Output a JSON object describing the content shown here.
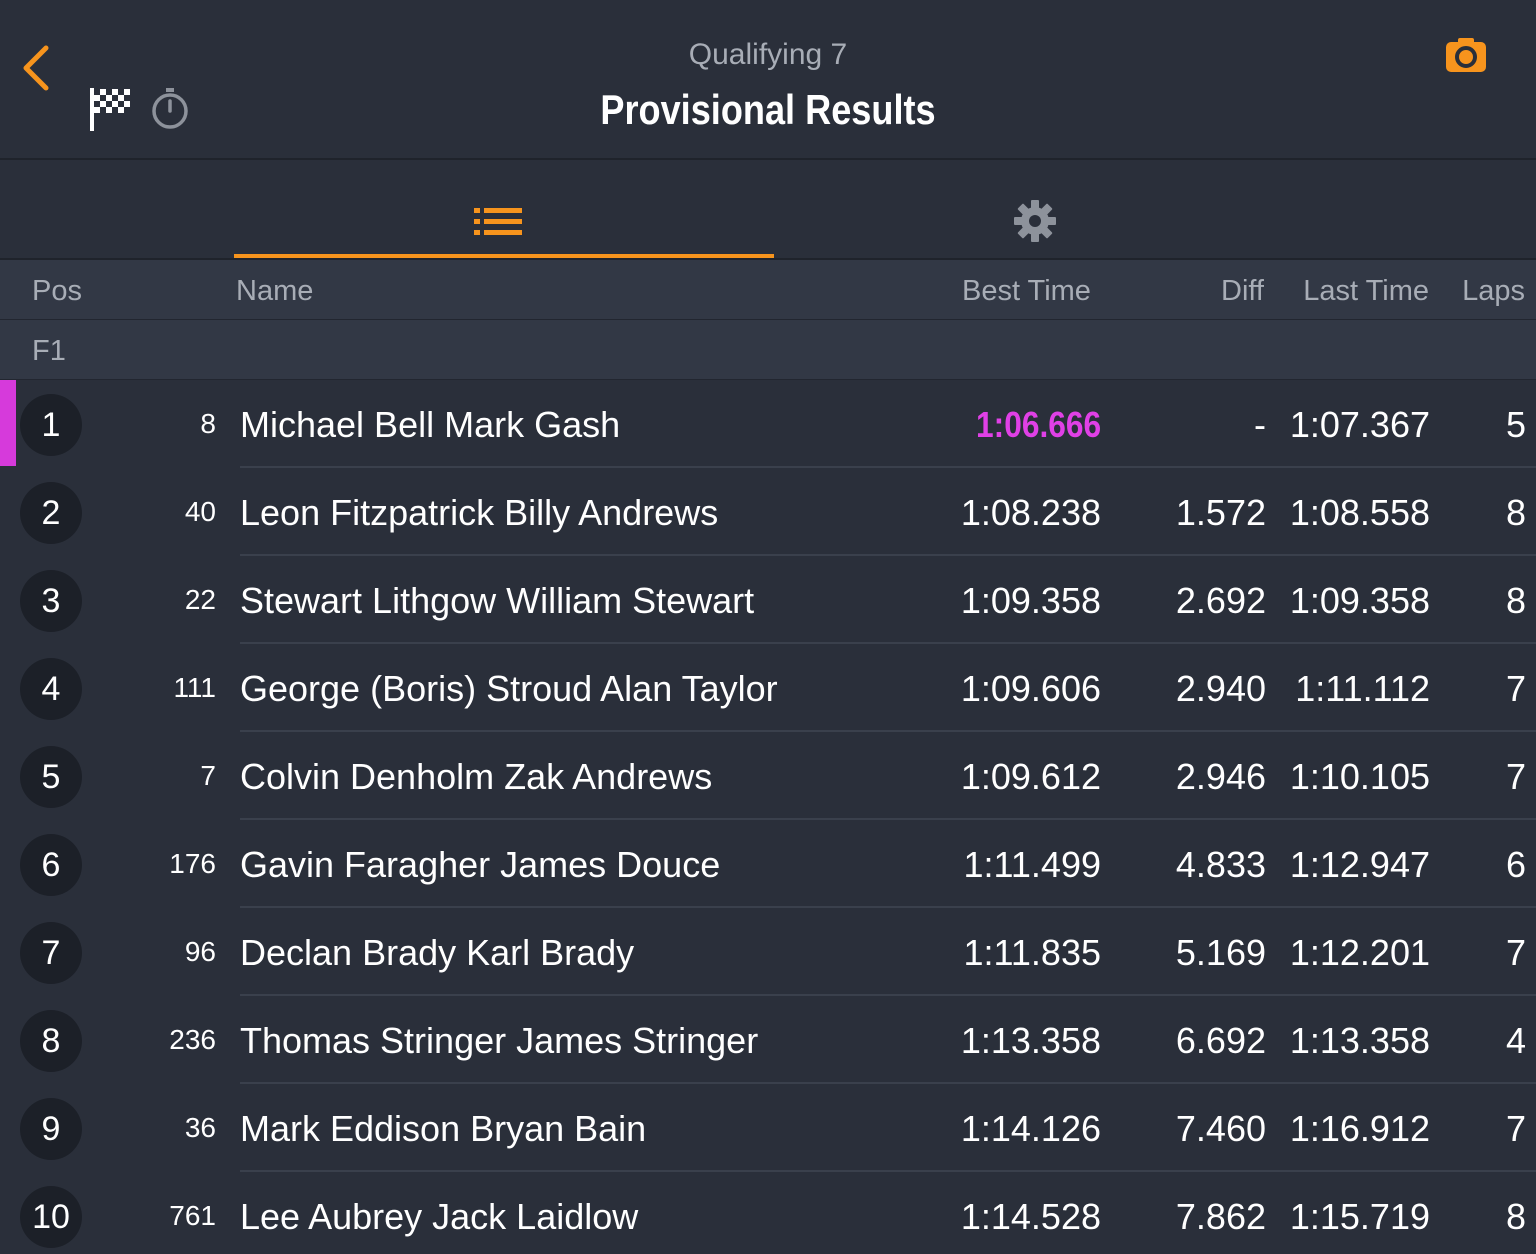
{
  "header": {
    "session_name": "Qualifying 7",
    "title": "Provisional Results",
    "back_icon": "chevron-left-icon",
    "flag_icon": "checkered-flag-icon",
    "stopwatch_icon": "stopwatch-icon",
    "camera_icon": "camera-icon"
  },
  "tabs": [
    {
      "name": "list-icon",
      "active": true
    },
    {
      "name": "gear-icon",
      "active": false
    }
  ],
  "columns": {
    "pos": "Pos",
    "name": "Name",
    "best_time": "Best Time",
    "diff": "Diff",
    "last_time": "Last Time",
    "laps": "Laps"
  },
  "class_label": "F1",
  "colors": {
    "accent": "#f7941d",
    "fastest": "#e040e6",
    "background": "#2a2f3a"
  },
  "results": [
    {
      "pos": "1",
      "kart": "8",
      "name": "Michael Bell Mark Gash",
      "best": "1:06.666",
      "diff": "-",
      "last": "1:07.367",
      "laps": "5",
      "fastest": true
    },
    {
      "pos": "2",
      "kart": "40",
      "name": "Leon Fitzpatrick Billy Andrews",
      "best": "1:08.238",
      "diff": "1.572",
      "last": "1:08.558",
      "laps": "8"
    },
    {
      "pos": "3",
      "kart": "22",
      "name": "Stewart Lithgow William Stewart",
      "best": "1:09.358",
      "diff": "2.692",
      "last": "1:09.358",
      "laps": "8"
    },
    {
      "pos": "4",
      "kart": "111",
      "name": "George (Boris) Stroud Alan Taylor",
      "best": "1:09.606",
      "diff": "2.940",
      "last": "1:11.112",
      "laps": "7"
    },
    {
      "pos": "5",
      "kart": "7",
      "name": "Colvin Denholm Zak Andrews",
      "best": "1:09.612",
      "diff": "2.946",
      "last": "1:10.105",
      "laps": "7"
    },
    {
      "pos": "6",
      "kart": "176",
      "name": "Gavin Faragher James Douce",
      "best": "1:11.499",
      "diff": "4.833",
      "last": "1:12.947",
      "laps": "6"
    },
    {
      "pos": "7",
      "kart": "96",
      "name": "Declan Brady Karl Brady",
      "best": "1:11.835",
      "diff": "5.169",
      "last": "1:12.201",
      "laps": "7"
    },
    {
      "pos": "8",
      "kart": "236",
      "name": "Thomas Stringer James Stringer",
      "best": "1:13.358",
      "diff": "6.692",
      "last": "1:13.358",
      "laps": "4"
    },
    {
      "pos": "9",
      "kart": "36",
      "name": "Mark Eddison Bryan Bain",
      "best": "1:14.126",
      "diff": "7.460",
      "last": "1:16.912",
      "laps": "7"
    },
    {
      "pos": "10",
      "kart": "761",
      "name": "Lee Aubrey Jack Laidlow",
      "best": "1:14.528",
      "diff": "7.862",
      "last": "1:15.719",
      "laps": "8"
    }
  ]
}
